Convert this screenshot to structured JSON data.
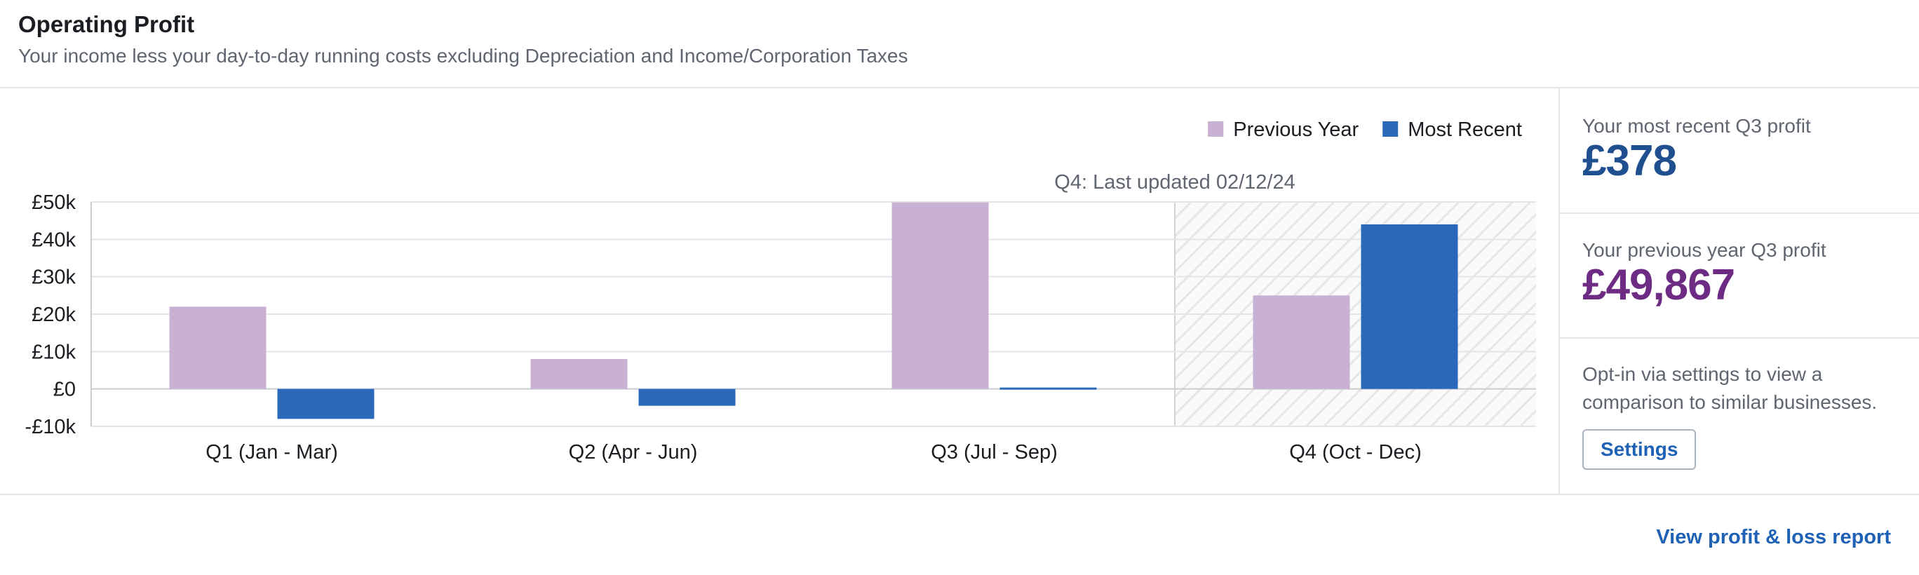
{
  "header": {
    "title": "Operating Profit",
    "subtitle": "Your income less your day-to-day running costs excluding Depreciation and Income/Corporation Taxes"
  },
  "chart_data": {
    "type": "bar",
    "categories": [
      "Q1 (Jan - Mar)",
      "Q2 (Apr - Jun)",
      "Q3 (Jul - Sep)",
      "Q4 (Oct - Dec)"
    ],
    "series": [
      {
        "name": "Previous Year",
        "color": "#c8b1d3",
        "values": [
          22000,
          8000,
          49867,
          25000
        ]
      },
      {
        "name": "Most Recent",
        "color": "#2a68ba",
        "values": [
          -8000,
          -4500,
          378,
          44000
        ]
      }
    ],
    "ylim": [
      -10000,
      50000
    ],
    "yticks": [
      50000,
      40000,
      30000,
      20000,
      10000,
      0,
      -10000
    ],
    "ytick_labels": [
      "£50k",
      "£40k",
      "£30k",
      "£20k",
      "£10k",
      "£0",
      "-£10k"
    ],
    "legend_position": "top-right",
    "highlight_category": "Q4 (Oct - Dec)",
    "annotation": "Q4: Last updated 02/12/24",
    "grid": true
  },
  "stats": {
    "recent_label": "Your most recent Q3 profit",
    "recent_value": "£378",
    "previous_label": "Your previous year Q3 profit",
    "previous_value": "£49,867"
  },
  "optin_text": "Opt-in via settings to view a comparison to similar businesses.",
  "settings_button": "Settings",
  "report_link": "View profit & loss report"
}
